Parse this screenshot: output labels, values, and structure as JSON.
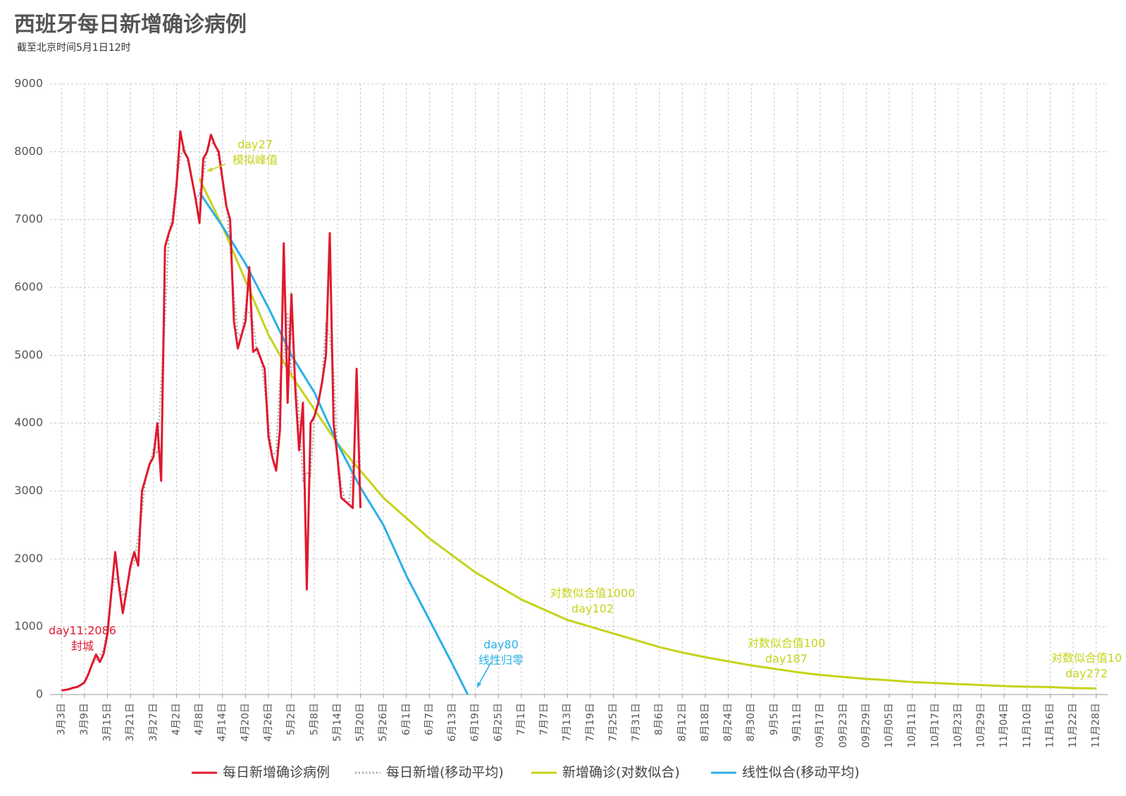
{
  "chart_data": {
    "type": "line",
    "title": "西班牙每日新增确诊病例",
    "subtitle": "截至北京时间5月1日12时",
    "xlim": [
      -3,
      273
    ],
    "xticks": [
      {
        "value": 0,
        "label": "3月3日"
      },
      {
        "value": 6,
        "label": "3月9日"
      },
      {
        "value": 12,
        "label": "3月15日"
      },
      {
        "value": 18,
        "label": "3月21日"
      },
      {
        "value": 24,
        "label": "3月27日"
      },
      {
        "value": 30,
        "label": "4月2日"
      },
      {
        "value": 36,
        "label": "4月8日"
      },
      {
        "value": 42,
        "label": "4月14日"
      },
      {
        "value": 48,
        "label": "4月20日"
      },
      {
        "value": 54,
        "label": "4月26日"
      },
      {
        "value": 60,
        "label": "5月2日"
      },
      {
        "value": 66,
        "label": "5月8日"
      },
      {
        "value": 72,
        "label": "5月14日"
      },
      {
        "value": 78,
        "label": "5月20日"
      },
      {
        "value": 84,
        "label": "5月26日"
      },
      {
        "value": 90,
        "label": "6月1日"
      },
      {
        "value": 96,
        "label": "6月7日"
      },
      {
        "value": 102,
        "label": "6月13日"
      },
      {
        "value": 108,
        "label": "6月19日"
      },
      {
        "value": 114,
        "label": "6月25日"
      },
      {
        "value": 120,
        "label": "7月1日"
      },
      {
        "value": 126,
        "label": "7月7日"
      },
      {
        "value": 132,
        "label": "7月13日"
      },
      {
        "value": 138,
        "label": "7月19日"
      },
      {
        "value": 144,
        "label": "7月25日"
      },
      {
        "value": 150,
        "label": "7月31日"
      },
      {
        "value": 156,
        "label": "8月6日"
      },
      {
        "value": 162,
        "label": "8月12日"
      },
      {
        "value": 168,
        "label": "8月18日"
      },
      {
        "value": 174,
        "label": "8月24日"
      },
      {
        "value": 180,
        "label": "8月30日"
      },
      {
        "value": 186,
        "label": "9月5日"
      },
      {
        "value": 192,
        "label": "9月11日"
      },
      {
        "value": 198,
        "label": "09月17日"
      },
      {
        "value": 204,
        "label": "09月23日"
      },
      {
        "value": 210,
        "label": "09月29日"
      },
      {
        "value": 216,
        "label": "10月05日"
      },
      {
        "value": 222,
        "label": "10月11日"
      },
      {
        "value": 228,
        "label": "10月17日"
      },
      {
        "value": 234,
        "label": "10月23日"
      },
      {
        "value": 240,
        "label": "10月29日"
      },
      {
        "value": 246,
        "label": "11月04日"
      },
      {
        "value": 252,
        "label": "11月10日"
      },
      {
        "value": 258,
        "label": "11月16日"
      },
      {
        "value": 264,
        "label": "11月22日"
      },
      {
        "value": 270,
        "label": "11月28日"
      }
    ],
    "ylim": [
      0,
      9000
    ],
    "yticks": [
      0,
      1000,
      2000,
      3000,
      4000,
      5000,
      6000,
      7000,
      8000,
      9000
    ],
    "grid": true,
    "legend": "bottom",
    "series": [
      {
        "name": "每日新增确诊病例",
        "color": "#e0192e",
        "style": "solid",
        "x": [
          0,
          1,
          2,
          3,
          4,
          5,
          6,
          7,
          8,
          9,
          10,
          11,
          12,
          13,
          14,
          15,
          16,
          17,
          18,
          19,
          20,
          21,
          22,
          23,
          24,
          25,
          26,
          27,
          28,
          29,
          30,
          31,
          32,
          33,
          34,
          35,
          36,
          37,
          38,
          39,
          40,
          41,
          42,
          43,
          44,
          45,
          46,
          47,
          48,
          49,
          50,
          51,
          52,
          53,
          54,
          55,
          56,
          57,
          58,
          59,
          60,
          61,
          62,
          63,
          64,
          65,
          66,
          67,
          68,
          69,
          70,
          71,
          72,
          73,
          74,
          75,
          76,
          77,
          78
        ],
        "values": [
          60,
          70,
          80,
          100,
          110,
          140,
          180,
          300,
          450,
          590,
          480,
          600,
          900,
          1500,
          2100,
          1600,
          1200,
          1550,
          1900,
          2100,
          1900,
          3000,
          3200,
          3400,
          3500,
          4000,
          3150,
          6600,
          6800,
          6950,
          7500,
          8300,
          8000,
          7900,
          7600,
          7300,
          6950,
          7900,
          8000,
          8250,
          8100,
          8000,
          7600,
          7200,
          7000,
          5500,
          5100,
          5300,
          5500,
          6300,
          5050,
          5100,
          4950,
          4800,
          3800,
          3500,
          3300,
          3900,
          6650,
          4300,
          5900,
          4500,
          3600,
          4300,
          1550,
          4000,
          4100,
          4300,
          4600,
          5000,
          6800,
          4000,
          3500,
          2900,
          2850,
          2800,
          2750,
          4800,
          2750
        ]
      },
      {
        "name": "每日新增(移动平均)",
        "color": "#aaaaaa",
        "style": "dotted",
        "x": [
          0,
          1,
          2,
          3,
          4,
          5,
          6,
          7,
          8,
          9,
          10,
          11,
          12,
          13,
          14,
          15,
          16,
          17,
          18,
          19,
          20,
          21,
          22,
          23,
          24,
          25,
          26,
          27,
          28,
          29,
          30,
          31,
          32,
          33,
          34,
          35,
          36,
          37,
          38,
          39,
          40,
          41,
          42,
          43,
          44,
          45,
          46,
          47,
          48,
          49,
          50,
          51,
          52,
          53,
          54,
          55,
          56,
          57,
          58,
          59,
          60,
          61,
          62,
          63,
          64,
          65,
          66,
          67,
          68,
          69,
          70,
          71,
          72,
          73,
          74,
          75,
          76,
          77,
          78
        ],
        "values": [
          65,
          70,
          85,
          95,
          115,
          145,
          200,
          310,
          450,
          510,
          560,
          670,
          1000,
          1500,
          1730,
          1630,
          1450,
          1550,
          1850,
          1970,
          2330,
          2700,
          3200,
          3370,
          3630,
          3550,
          4580,
          5520,
          6780,
          7080,
          7580,
          7930,
          8070,
          7830,
          7600,
          7280,
          7380,
          7620,
          8050,
          8120,
          8120,
          7900,
          7600,
          7270,
          6570,
          5870,
          5300,
          5300,
          5700,
          5620,
          5480,
          5030,
          4950,
          4520,
          4030,
          3530,
          3570,
          4620,
          4950,
          5630,
          4730,
          4670,
          4130,
          3150,
          3280,
          3220,
          4130,
          4330,
          4630,
          5470,
          5270,
          4770,
          3470,
          3080,
          2850,
          2800,
          3450,
          3430,
          3500
        ]
      },
      {
        "name": "新增确诊(对数似合)",
        "color": "#c5d31a",
        "style": "solid",
        "x": [
          36,
          42,
          48,
          54,
          60,
          66,
          72,
          78,
          84,
          90,
          96,
          102,
          108,
          114,
          120,
          126,
          132,
          138,
          144,
          150,
          156,
          162,
          168,
          174,
          180,
          186,
          192,
          198,
          204,
          210,
          216,
          222,
          228,
          234,
          240,
          246,
          252,
          258,
          264,
          270
        ],
        "values": [
          7600,
          6900,
          6100,
          5300,
          4700,
          4200,
          3700,
          3300,
          2900,
          2600,
          2300,
          2050,
          1800,
          1600,
          1400,
          1250,
          1100,
          1000,
          900,
          800,
          700,
          620,
          550,
          490,
          430,
          380,
          330,
          290,
          260,
          230,
          210,
          185,
          170,
          155,
          140,
          125,
          115,
          110,
          95,
          90
        ]
      },
      {
        "name": "线性似合(移动平均)",
        "color": "#2bb0e6",
        "style": "solid",
        "x": [
          36,
          42,
          48,
          54,
          60,
          66,
          72,
          78,
          84,
          90,
          96,
          102,
          106
        ],
        "values": [
          7400,
          6900,
          6350,
          5700,
          5000,
          4450,
          3700,
          3050,
          2500,
          1750,
          1100,
          450,
          0
        ]
      }
    ],
    "annotations": [
      {
        "lines": [
          "day11:2086",
          "封城"
        ],
        "color": "#e0192e"
      },
      {
        "lines": [
          "day27",
          "模拟峰值"
        ],
        "color": "#c5d31a"
      },
      {
        "lines": [
          "day80",
          "线性归零"
        ],
        "color": "#2bb0e6"
      },
      {
        "lines": [
          "对数似合值1000",
          "day102"
        ],
        "color": "#c5d31a"
      },
      {
        "lines": [
          "对数似合值100",
          "day187"
        ],
        "color": "#c5d31a"
      },
      {
        "lines": [
          "对数似合值10",
          "day272"
        ],
        "color": "#c5d31a"
      }
    ]
  }
}
